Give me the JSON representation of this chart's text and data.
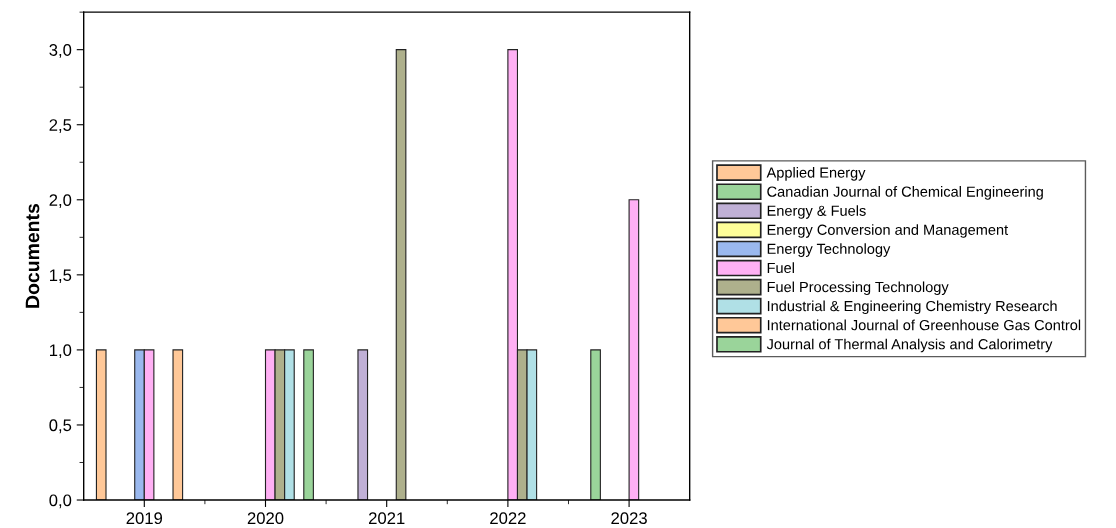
{
  "chart_data": {
    "type": "bar",
    "ylabel": "Documents",
    "categories": [
      "2019",
      "2020",
      "2021",
      "2022",
      "2023"
    ],
    "series": [
      {
        "name": "Applied Energy",
        "color": "#ffc898",
        "values": [
          1,
          0,
          0,
          0,
          0
        ]
      },
      {
        "name": "Canadian Journal of Chemical Engineering",
        "color": "#9ad49a",
        "values": [
          0,
          0,
          0,
          0,
          1
        ]
      },
      {
        "name": "Energy & Fuels",
        "color": "#c0b0d6",
        "values": [
          0,
          0,
          1,
          0,
          0
        ]
      },
      {
        "name": "Energy Conversion and Management",
        "color": "#ffff99",
        "values": [
          0,
          0,
          0,
          0,
          0
        ]
      },
      {
        "name": "Energy Technology",
        "color": "#9ab8ee",
        "values": [
          1,
          0,
          0,
          0,
          0
        ]
      },
      {
        "name": "Fuel",
        "color": "#ffb0f4",
        "values": [
          1,
          1,
          0,
          3,
          2
        ]
      },
      {
        "name": "Fuel Processing Technology",
        "color": "#aeb08c",
        "values": [
          0,
          1,
          3,
          1,
          0
        ]
      },
      {
        "name": "Industrial & Engineering Chemistry Research",
        "color": "#b0e0e6",
        "values": [
          0,
          1,
          0,
          1,
          0
        ]
      },
      {
        "name": "International Journal of Greenhouse Gas Control",
        "color": "#ffc898",
        "values": [
          1,
          0,
          0,
          0,
          0
        ]
      },
      {
        "name": "Journal of Thermal Analysis and Calorimetry",
        "color": "#9ad49a",
        "values": [
          0,
          1,
          0,
          0,
          0
        ]
      }
    ],
    "ylim": [
      0,
      3.25
    ],
    "yticks": [
      {
        "value": 0,
        "label": "0,0"
      },
      {
        "value": 0.5,
        "label": "0,5"
      },
      {
        "value": 1,
        "label": "1,0"
      },
      {
        "value": 1.5,
        "label": "1,5"
      },
      {
        "value": 2,
        "label": "2,0"
      },
      {
        "value": 2.5,
        "label": "2,5"
      },
      {
        "value": 3,
        "label": "3,0"
      }
    ],
    "grid": false,
    "legend": "right"
  }
}
